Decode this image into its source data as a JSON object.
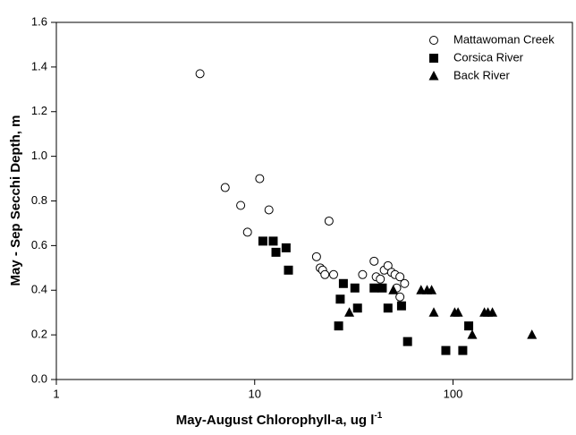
{
  "chart_data": {
    "type": "scatter",
    "x_label": {
      "text": "May-August Chlorophyll-a, ug l",
      "superscript": "-1"
    },
    "y_label": "May - Sep Secchi Depth, m",
    "xscale": "log",
    "xlim": [
      1,
      400
    ],
    "xticks": [
      1,
      10,
      100
    ],
    "ylim": [
      0,
      1.6
    ],
    "yticks": [
      {
        "value": 0,
        "label": "0.0"
      },
      0.2,
      0.4,
      0.6,
      0.8,
      {
        "value": 1,
        "label": "1.0"
      },
      1.2,
      1.4,
      1.6
    ],
    "legend": "upper right",
    "series": [
      {
        "name": "Mattawoman Creek",
        "color": "#000000",
        "marker": "circle-open",
        "x": [
          5.3,
          7.1,
          8.5,
          9.2,
          10.6,
          11.8,
          23.7,
          20.5,
          21.4,
          22.0,
          22.6,
          25,
          35,
          40,
          41,
          43,
          45,
          47,
          49,
          51,
          52,
          54,
          57,
          54
        ],
        "values": [
          1.37,
          0.86,
          0.78,
          0.66,
          0.9,
          0.76,
          0.71,
          0.55,
          0.5,
          0.49,
          0.47,
          0.47,
          0.47,
          0.53,
          0.46,
          0.45,
          0.49,
          0.51,
          0.48,
          0.47,
          0.41,
          0.46,
          0.43,
          0.37
        ]
      },
      {
        "name": "Corsica River",
        "color": "#000000",
        "marker": "square",
        "x": [
          11,
          12.4,
          12.8,
          14.4,
          14.8,
          28,
          27,
          26.5,
          32,
          33,
          40,
          44,
          47,
          55,
          59,
          92,
          112,
          120
        ],
        "values": [
          0.62,
          0.62,
          0.57,
          0.59,
          0.49,
          0.43,
          0.36,
          0.24,
          0.41,
          0.32,
          0.41,
          0.41,
          0.32,
          0.33,
          0.17,
          0.13,
          0.13,
          0.24
        ]
      },
      {
        "name": "Back River",
        "color": "#000000",
        "marker": "triangle",
        "x": [
          30,
          50,
          69,
          74,
          78,
          80,
          102,
          106,
          125,
          144,
          150,
          158,
          250
        ],
        "values": [
          0.3,
          0.4,
          0.4,
          0.4,
          0.4,
          0.3,
          0.3,
          0.3,
          0.2,
          0.3,
          0.3,
          0.3,
          0.2
        ]
      }
    ]
  }
}
